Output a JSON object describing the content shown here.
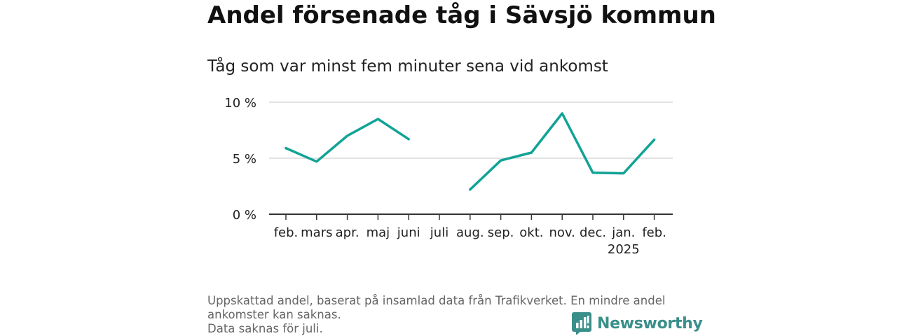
{
  "title": "Andel försenade tåg i Sävsjö kommun",
  "subtitle": "Tåg som var minst fem minuter sena vid ankomst",
  "footer": {
    "line1": "Uppskattad andel, baserat på insamlad data från Trafikverket. En mindre andel",
    "line2": "ankomster kan saknas.",
    "line3": "Data saknas för juli."
  },
  "brand": {
    "name": "Newsworthy",
    "icon": "newsworthy-logo-icon",
    "color": "#3a8f8a"
  },
  "chart_data": {
    "type": "line",
    "categories": [
      "feb.",
      "mars",
      "apr.",
      "maj",
      "juni",
      "juli",
      "aug.",
      "sep.",
      "okt.",
      "nov.",
      "dec.",
      "jan.",
      "feb."
    ],
    "category_sublabels": [
      "",
      "",
      "",
      "",
      "",
      "",
      "",
      "",
      "",
      "",
      "",
      "2025",
      ""
    ],
    "series": [
      {
        "values": [
          5.9,
          4.7,
          7.0,
          8.5,
          6.7,
          null,
          2.2,
          4.8,
          5.5,
          9.0,
          3.7,
          3.65,
          6.65
        ],
        "color": "#11a396"
      }
    ],
    "yticks": [
      0,
      5,
      10
    ],
    "ytick_labels": [
      "0 %",
      "5 %",
      "10 %"
    ],
    "ylim": [
      0,
      10
    ],
    "grid": true
  }
}
